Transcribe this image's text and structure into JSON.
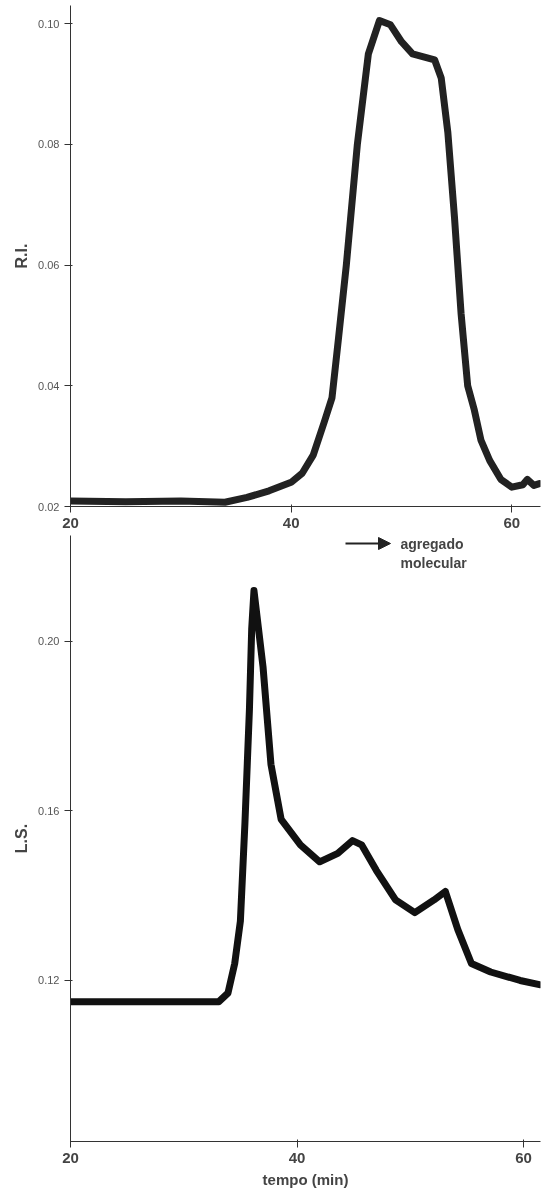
{
  "chart_data": [
    {
      "type": "line",
      "ylabel": "R.I.",
      "xlim": [
        20,
        62.6
      ],
      "ylim": [
        0.02,
        0.103
      ],
      "xticks": [
        20,
        40,
        60
      ],
      "yticks": [
        {
          "value": 0.02,
          "label": "0.02"
        },
        {
          "value": 0.04,
          "label": "0.04"
        },
        {
          "value": 0.06,
          "label": "0.06"
        },
        {
          "value": 0.08,
          "label": "0.08"
        },
        {
          "value": 0.1,
          "label": "0.10"
        }
      ],
      "grid": false,
      "line_style": "solid",
      "marker": "none",
      "series": [
        {
          "color": "#222222",
          "x": [
            20,
            25,
            30,
            34,
            36,
            38,
            40,
            41,
            42,
            43,
            43.7,
            44.3,
            45,
            46,
            47,
            48,
            49,
            50,
            51,
            52,
            53,
            53.6,
            54.2,
            54.8,
            55.4,
            56,
            56.6,
            57.2,
            58,
            59,
            60,
            61,
            61.4,
            62,
            62.5
          ],
          "values": [
            0.0209,
            0.0208,
            0.0209,
            0.0207,
            0.0215,
            0.0226,
            0.024,
            0.0255,
            0.0285,
            0.034,
            0.038,
            0.048,
            0.06,
            0.08,
            0.095,
            0.1005,
            0.0998,
            0.097,
            0.095,
            0.0945,
            0.094,
            0.091,
            0.082,
            0.068,
            0.052,
            0.04,
            0.036,
            0.031,
            0.0276,
            0.0245,
            0.0232,
            0.0236,
            0.0245,
            0.0235,
            0.0238
          ]
        }
      ]
    },
    {
      "type": "line",
      "xlabel": "tempo (min)",
      "ylabel": "L.S.",
      "xlim": [
        20,
        61.5
      ],
      "ylim": [
        0.082,
        0.225
      ],
      "xticks": [
        20,
        40,
        60
      ],
      "yticks": [
        {
          "value": 0.12,
          "label": "0.12"
        },
        {
          "value": 0.16,
          "label": "0.16"
        },
        {
          "value": 0.2,
          "label": "0.20"
        }
      ],
      "grid": false,
      "line_style": "solid",
      "marker": "none",
      "annotations": [
        "agregado\nmolecular"
      ],
      "series": [
        {
          "color": "#111111",
          "x": [
            20,
            25,
            30,
            33.1,
            33.9,
            34.5,
            35,
            35.4,
            35.8,
            36,
            36.2,
            37,
            37.7,
            38.6,
            40.3,
            42,
            43.6,
            44.9,
            45.7,
            47,
            48.7,
            50.4,
            52.1,
            53.1,
            54.2,
            55.4,
            57.1,
            59.7,
            61.4
          ],
          "values": [
            0.115,
            0.115,
            0.115,
            0.115,
            0.117,
            0.124,
            0.134,
            0.157,
            0.184,
            0.203,
            0.212,
            0.194,
            0.171,
            0.158,
            0.152,
            0.148,
            0.15,
            0.153,
            0.152,
            0.146,
            0.139,
            0.136,
            0.139,
            0.141,
            0.132,
            0.124,
            0.122,
            0.12,
            0.119
          ]
        }
      ]
    }
  ]
}
